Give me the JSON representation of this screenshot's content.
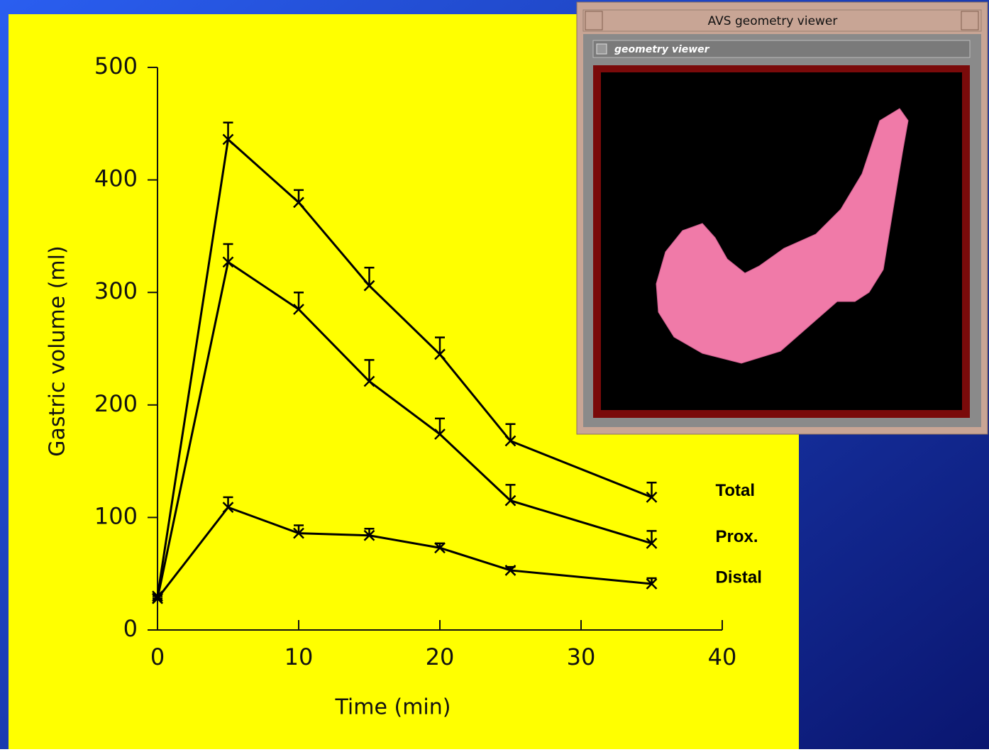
{
  "chart_data": {
    "type": "line",
    "x_label": "Time (min)",
    "y_label": "Gastric volume (ml)",
    "x": [
      0,
      5,
      10,
      15,
      20,
      25,
      35
    ],
    "series": [
      {
        "name": "Total",
        "color": "#000000",
        "values": [
          30,
          436,
          380,
          306,
          245,
          168,
          118
        ],
        "errors": [
          0,
          15,
          11,
          16,
          15,
          15,
          13
        ]
      },
      {
        "name": "Prox.",
        "color": "#000000",
        "values": [
          28,
          327,
          285,
          221,
          174,
          115,
          77
        ],
        "errors": [
          0,
          16,
          15,
          19,
          14,
          14,
          11
        ]
      },
      {
        "name": "Distal",
        "color": "#000000",
        "values": [
          28,
          109,
          86,
          84,
          73,
          53,
          41
        ],
        "errors": [
          0,
          9,
          7,
          6,
          4,
          3,
          5
        ]
      }
    ],
    "xlim": [
      0,
      40
    ],
    "xticks": [
      0,
      10,
      20,
      30,
      40
    ],
    "ylim": [
      0,
      500
    ],
    "yticks": [
      0,
      100,
      200,
      300,
      400,
      500
    ]
  },
  "window": {
    "title": "AVS geometry viewer",
    "panel_label": "geometry viewer"
  }
}
